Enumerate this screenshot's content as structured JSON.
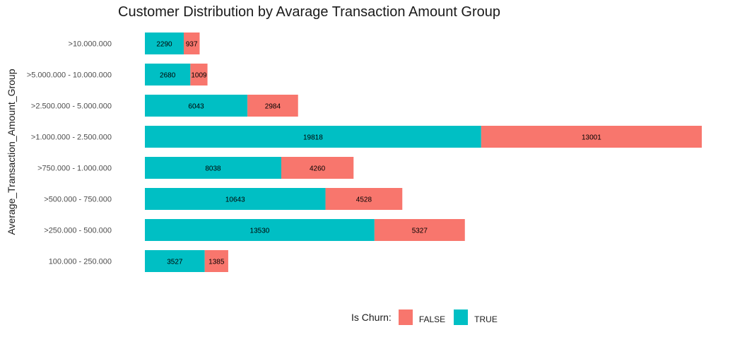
{
  "chart_data": {
    "type": "bar",
    "orientation": "horizontal",
    "stacked": true,
    "title": "Customer Distribution by Avarage Transaction Amount Group",
    "xlabel": "",
    "ylabel": "Average_Transaction_Amount_Group",
    "categories": [
      ">10.000.000",
      ">5.000.000 - 10.000.000",
      ">2.500.000 - 5.000.000",
      ">1.000.000 - 2.500.000",
      ">750.000 - 1.000.000",
      ">500.000 - 750.000",
      ">250.000 - 500.000",
      "100.000 - 250.000"
    ],
    "series": [
      {
        "name": "TRUE",
        "color": "#00BFC4",
        "values": [
          2290,
          2680,
          6043,
          19818,
          8038,
          10643,
          13530,
          3527
        ]
      },
      {
        "name": "FALSE",
        "color": "#F8766D",
        "values": [
          937,
          1009,
          2984,
          13001,
          4260,
          4528,
          5327,
          1385
        ]
      }
    ],
    "grid": false,
    "legend": {
      "title": "Is Churn:",
      "placement": "bottom",
      "entries": [
        {
          "name": "FALSE",
          "color": "#F8766D"
        },
        {
          "name": "TRUE",
          "color": "#00BFC4"
        }
      ]
    }
  }
}
